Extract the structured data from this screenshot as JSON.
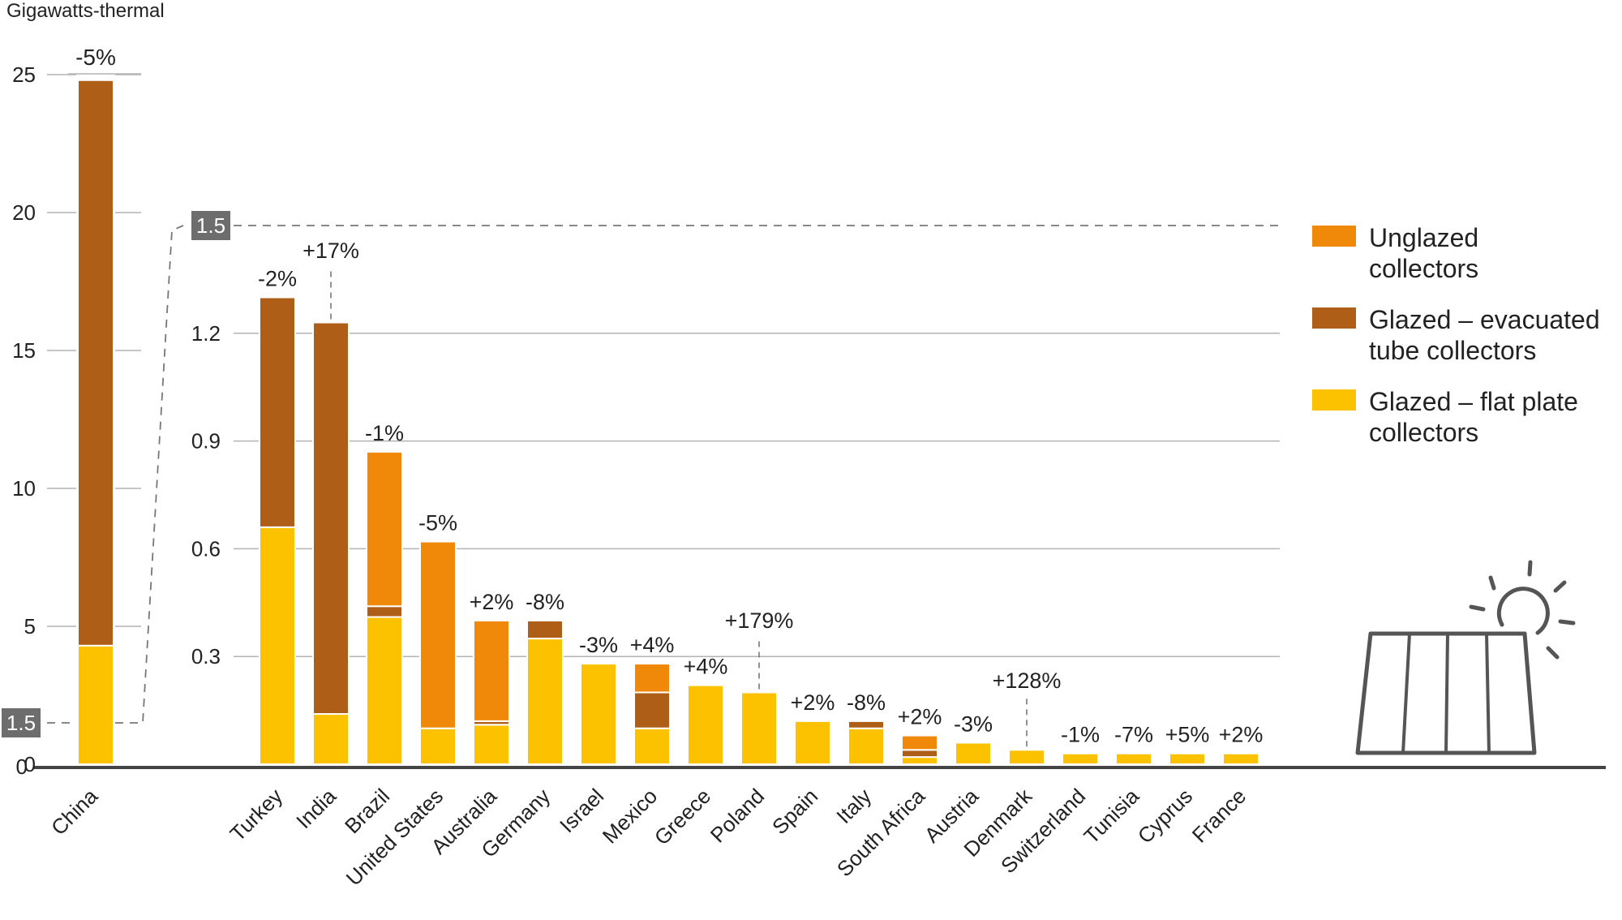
{
  "colors": {
    "unglazed": "#F0880A",
    "evacuated": "#AE5E17",
    "flat_plate": "#FCC200",
    "axis": "#444444",
    "grid": "#b3b3b3",
    "badge_bg": "#6d6d6d",
    "badge_text": "#ffffff",
    "icon": "#555555"
  },
  "chart_data": [
    {
      "type": "bar",
      "stacked": true,
      "ylabel": "Gigawatts-thermal",
      "yticks": [
        0,
        5,
        10,
        15,
        20,
        25
      ],
      "ylim": [
        0,
        25.5
      ],
      "threshold_badge": "1.5",
      "categories": [
        "China"
      ],
      "series": [
        {
          "name": "Glazed – flat plate collectors",
          "key": "flat_plate",
          "values": [
            4.3
          ]
        },
        {
          "name": "Glazed – evacuated tube collectors",
          "key": "evacuated",
          "values": [
            20.5
          ]
        },
        {
          "name": "Unglazed collectors",
          "key": "unglazed",
          "values": [
            0
          ]
        }
      ],
      "change_labels": [
        "-5%"
      ]
    },
    {
      "type": "bar",
      "stacked": true,
      "yticks": [
        "0.3",
        "0.6",
        "0.9",
        "1.2"
      ],
      "ylim": [
        0,
        1.5
      ],
      "max_badge": "1.5",
      "zero_label": "0",
      "categories": [
        "Turkey",
        "India",
        "Brazil",
        "United States",
        "Australia",
        "Germany",
        "Israel",
        "Mexico",
        "Greece",
        "Poland",
        "Spain",
        "Italy",
        "South Africa",
        "Austria",
        "Denmark",
        "Switzerland",
        "Tunisia",
        "Cyprus",
        "France"
      ],
      "series": [
        {
          "name": "Glazed – flat plate collectors",
          "key": "flat_plate",
          "values": [
            0.66,
            0.14,
            0.41,
            0.1,
            0.11,
            0.35,
            0.28,
            0.1,
            0.22,
            0.2,
            0.12,
            0.1,
            0.02,
            0.06,
            0.04,
            0.03,
            0.03,
            0.03,
            0.03
          ]
        },
        {
          "name": "Glazed – evacuated tube collectors",
          "key": "evacuated",
          "values": [
            0.64,
            1.09,
            0.03,
            0.0,
            0.01,
            0.05,
            0.0,
            0.1,
            0.0,
            0.0,
            0.0,
            0.02,
            0.02,
            0.0,
            0.0,
            0.0,
            0.0,
            0.0,
            0.0
          ]
        },
        {
          "name": "Unglazed collectors",
          "key": "unglazed",
          "values": [
            0.0,
            0.0,
            0.43,
            0.52,
            0.28,
            0.0,
            0.0,
            0.08,
            0.0,
            0.0,
            0.0,
            0.0,
            0.04,
            0.0,
            0.0,
            0.0,
            0.0,
            0.0,
            0.0
          ]
        }
      ],
      "change_labels": [
        "-2%",
        "+17%",
        "-1%",
        "-5%",
        "+2%",
        "-8%",
        "-3%",
        "+4%",
        "+4%",
        "+179%",
        "+2%",
        "-8%",
        "+2%",
        "-3%",
        "+128%",
        "-1%",
        "-7%",
        "+5%",
        "+2%"
      ],
      "leader_label_categories": [
        "India",
        "Poland",
        "Denmark"
      ]
    }
  ],
  "legend": [
    {
      "key": "unglazed",
      "lines": [
        "Unglazed",
        "collectors"
      ]
    },
    {
      "key": "evacuated",
      "lines": [
        "Glazed – evacuated",
        "tube collectors"
      ]
    },
    {
      "key": "flat_plate",
      "lines": [
        "Glazed – flat plate",
        "collectors"
      ]
    }
  ],
  "icons": {
    "decoration": "solar-panel-sun-icon"
  }
}
